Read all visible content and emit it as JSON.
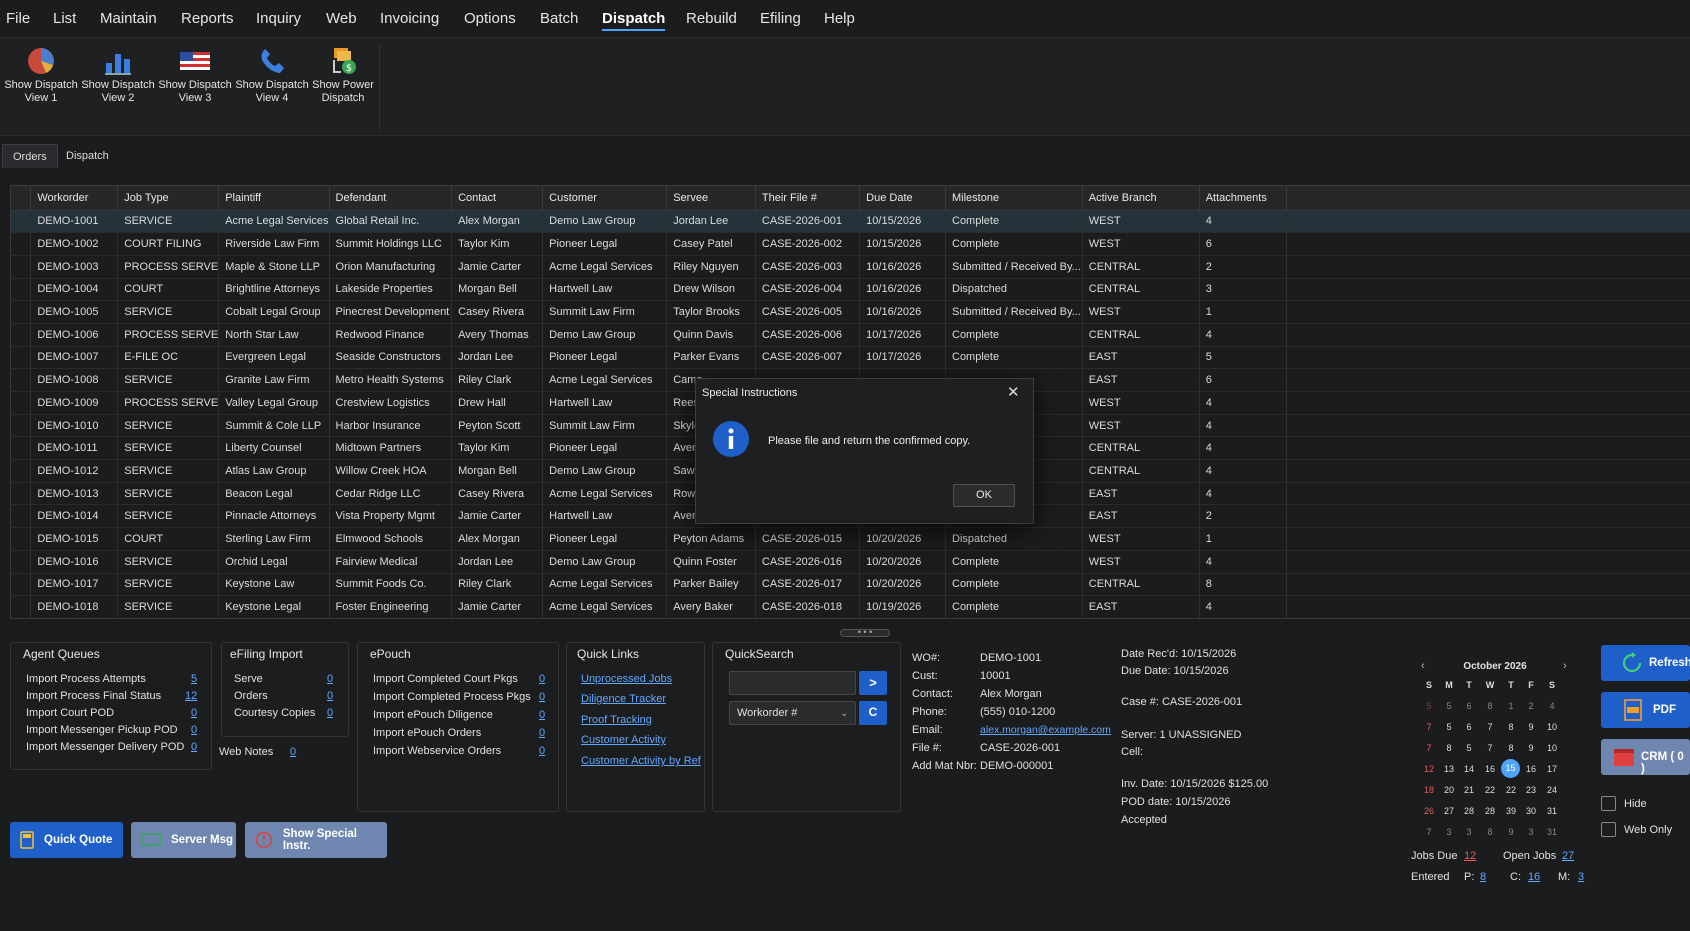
{
  "menu": [
    "File",
    "List",
    "Maintain",
    "Reports",
    "Inquiry",
    "Web",
    "Invoicing",
    "Options",
    "Batch",
    "Dispatch",
    "Rebuild",
    "Efiling",
    "Help"
  ],
  "ribbon": [
    {
      "line1": "Show Dispatch",
      "line2": "View 1",
      "icon": "pie-chart-icon"
    },
    {
      "line1": "Show Dispatch",
      "line2": "View 2",
      "icon": "bar-chart-icon"
    },
    {
      "line1": "Show Dispatch",
      "line2": "View 3",
      "icon": "flag-icon"
    },
    {
      "line1": "Show Dispatch",
      "line2": "View 4",
      "icon": "phone-icon"
    },
    {
      "line1": "Show Power",
      "line2": "Dispatch",
      "icon": "power-dispatch-icon"
    }
  ],
  "tabs": [
    "Orders",
    "Dispatch"
  ],
  "grid": {
    "columns": [
      "Workorder",
      "Job Type",
      "Plaintiff",
      "Defendant",
      "Contact",
      "Customer",
      "Servee",
      "Their File #",
      "Due Date",
      "Milestone",
      "Active Branch",
      "Attachments"
    ],
    "rows": [
      [
        "DEMO-1001",
        "SERVICE",
        "Acme Legal Services",
        "Global Retail Inc.",
        "Alex Morgan",
        "Demo Law Group",
        "Jordan Lee",
        "CASE-2026-001",
        "10/15/2026",
        "Complete",
        "WEST",
        "4"
      ],
      [
        "DEMO-1002",
        "COURT FILING",
        "Riverside Law Firm",
        "Summit Holdings LLC",
        "Taylor Kim",
        "Pioneer Legal",
        "Casey Patel",
        "CASE-2026-002",
        "10/15/2026",
        "Complete",
        "WEST",
        "6"
      ],
      [
        "DEMO-1003",
        "PROCESS SERVE",
        "Maple & Stone LLP",
        "Orion Manufacturing",
        "Jamie Carter",
        "Acme Legal Services",
        "Riley Nguyen",
        "CASE-2026-003",
        "10/16/2026",
        "Submitted / Received By...",
        "CENTRAL",
        "2"
      ],
      [
        "DEMO-1004",
        "COURT",
        "Brightline Attorneys",
        "Lakeside Properties",
        "Morgan Bell",
        "Hartwell Law",
        "Drew Wilson",
        "CASE-2026-004",
        "10/16/2026",
        "Dispatched",
        "CENTRAL",
        "3"
      ],
      [
        "DEMO-1005",
        "SERVICE",
        "Cobalt Legal Group",
        "Pinecrest Development",
        "Casey Rivera",
        "Summit Law Firm",
        "Taylor Brooks",
        "CASE-2026-005",
        "10/16/2026",
        "Submitted / Received By...",
        "WEST",
        "1"
      ],
      [
        "DEMO-1006",
        "PROCESS SERVE",
        "North Star Law",
        "Redwood Finance",
        "Avery Thomas",
        "Demo Law Group",
        "Quinn Davis",
        "CASE-2026-006",
        "10/17/2026",
        "Complete",
        "CENTRAL",
        "4"
      ],
      [
        "DEMO-1007",
        "E-FILE OC",
        "Evergreen Legal",
        "Seaside Constructors",
        "Jordan Lee",
        "Pioneer Legal",
        "Parker Evans",
        "CASE-2026-007",
        "10/17/2026",
        "Complete",
        "EAST",
        "5"
      ],
      [
        "DEMO-1008",
        "SERVICE",
        "Granite Law Firm",
        "Metro Health Systems",
        "Riley Clark",
        "Acme Legal Services",
        "Came",
        "",
        "",
        "",
        "EAST",
        "6"
      ],
      [
        "DEMO-1009",
        "PROCESS SERVE",
        "Valley Legal Group",
        "Crestview Logistics",
        "Drew Hall",
        "Hartwell Law",
        "Rees",
        "",
        "",
        "eceived By...",
        "WEST",
        "4"
      ],
      [
        "DEMO-1010",
        "SERVICE",
        "Summit & Cole LLP",
        "Harbor Insurance",
        "Peyton Scott",
        "Summit Law Firm",
        "Skyle",
        "",
        "",
        "",
        "WEST",
        "4"
      ],
      [
        "DEMO-1011",
        "SERVICE",
        "Liberty Counsel",
        "Midtown Partners",
        "Taylor Kim",
        "Pioneer Legal",
        "Avery",
        "",
        "",
        "",
        "CENTRAL",
        "4"
      ],
      [
        "DEMO-1012",
        "SERVICE",
        "Atlas Law Group",
        "Willow Creek HOA",
        "Morgan Bell",
        "Demo Law Group",
        "Sawy",
        "",
        "",
        "",
        "CENTRAL",
        "4"
      ],
      [
        "DEMO-1013",
        "SERVICE",
        "Beacon Legal",
        "Cedar Ridge LLC",
        "Casey Rivera",
        "Acme Legal Services",
        "Rowa",
        "",
        "",
        "",
        "EAST",
        "4"
      ],
      [
        "DEMO-1014",
        "SERVICE",
        "Pinnacle Attorneys",
        "Vista Property Mgmt",
        "Jamie Carter",
        "Hartwell Law",
        "Avery",
        "",
        "",
        "",
        "EAST",
        "2"
      ],
      [
        "DEMO-1015",
        "COURT",
        "Sterling Law Firm",
        "Elmwood Schools",
        "Alex Morgan",
        "Pioneer Legal",
        "Peyton Adams",
        "CASE-2026-015",
        "10/20/2026",
        "Dispatched",
        "WEST",
        "1"
      ],
      [
        "DEMO-1016",
        "SERVICE",
        "Orchid Legal",
        "Fairview Medical",
        "Jordan Lee",
        "Demo Law Group",
        "Quinn Foster",
        "CASE-2026-016",
        "10/20/2026",
        "Complete",
        "WEST",
        "4"
      ],
      [
        "DEMO-1017",
        "SERVICE",
        "Keystone Law",
        "Summit Foods Co.",
        "Riley Clark",
        "Acme Legal Services",
        "Parker Bailey",
        "CASE-2026-017",
        "10/20/2026",
        "Complete",
        "CENTRAL",
        "8"
      ],
      [
        "DEMO-1018",
        "SERVICE",
        "Keystone Legal",
        "Foster Engineering",
        "Jamie Carter",
        "Acme Legal Services",
        "Avery Baker",
        "CASE-2026-018",
        "10/19/2026",
        "Complete",
        "EAST",
        "4"
      ]
    ]
  },
  "agent_queues": {
    "title": "Agent Queues",
    "items": [
      {
        "label": "Import Process Attempts",
        "value": "5"
      },
      {
        "label": "Import Process Final Status",
        "value": "12"
      },
      {
        "label": "Import Court POD",
        "value": "0"
      },
      {
        "label": "Import Messenger Pickup POD",
        "value": "0"
      },
      {
        "label": "Import Messenger Delivery POD",
        "value": "0"
      }
    ]
  },
  "efiling": {
    "title": "eFiling Import",
    "items": [
      {
        "label": "Serve",
        "value": "0"
      },
      {
        "label": "Orders",
        "value": "0"
      },
      {
        "label": "Courtesy Copies",
        "value": "0"
      }
    ],
    "web_notes_label": "Web Notes",
    "web_notes_value": "0"
  },
  "epouch": {
    "title": "ePouch",
    "items": [
      {
        "label": "Import Completed Court Pkgs",
        "value": "0"
      },
      {
        "label": "Import Completed Process Pkgs",
        "value": "0"
      },
      {
        "label": "Import ePouch Diligence",
        "value": "0"
      },
      {
        "label": "Import ePouch Orders",
        "value": "0"
      },
      {
        "label": "Import Webservice Orders",
        "value": "0"
      }
    ]
  },
  "quick_links": {
    "title": "Quick Links",
    "items": [
      "Unprocessed Jobs",
      "Diligence Tracker",
      "Proof Tracking",
      "Customer Activity",
      "Customer Activity by Ref"
    ]
  },
  "quick_search": {
    "title": "QuickSearch",
    "input_value": "",
    "go_label": ">",
    "select_value": "Workorder #",
    "clear_label": "C"
  },
  "detail": {
    "wo_label": "WO#:",
    "wo": "DEMO-1001",
    "cust_label": "Cust:",
    "cust": "10001",
    "contact_label": "Contact:",
    "contact": "Alex Morgan",
    "phone_label": "Phone:",
    "phone": "(555) 010-1200",
    "email_label": "Email:",
    "email": "alex.morgan@example.com",
    "file_label": "File #:",
    "file": "CASE-2026-001",
    "mat_label": "Add Mat Nbr:",
    "mat": "DEMO-000001",
    "date_recd": "Date Rec'd: 10/15/2026",
    "due_date": "Due Date: 10/15/2026",
    "case": "Case #: CASE-2026-001",
    "server": "Server: 1 UNASSIGNED",
    "cell": "Cell:",
    "inv": "Inv. Date: 10/15/2026  $125.00",
    "pod": "POD date: 10/15/2026",
    "accepted": "Accepted"
  },
  "buttons": {
    "quick_quote": "Quick Quote",
    "server_msg": "Server Msg",
    "special_instr": "Show Special Instr."
  },
  "calendar": {
    "title": "October 2026",
    "days": [
      "S",
      "M",
      "T",
      "W",
      "T",
      "F",
      "S"
    ],
    "weeks": [
      [
        "5",
        "5",
        "6",
        "8",
        "1",
        "2",
        "4"
      ],
      [
        "7",
        "5",
        "6",
        "7",
        "8",
        "9",
        "10"
      ],
      [
        "7",
        "8",
        "5",
        "7",
        "8",
        "9",
        "10"
      ],
      [
        "12",
        "13",
        "14",
        "16",
        "15",
        "16",
        "17"
      ],
      [
        "18",
        "20",
        "21",
        "22",
        "22",
        "23",
        "24"
      ],
      [
        "26",
        "27",
        "28",
        "28",
        "39",
        "30",
        "31"
      ],
      [
        "7",
        "3",
        "3",
        "8",
        "9",
        "3",
        "31"
      ]
    ],
    "selected": "15",
    "accent": "#4da3ff",
    "weekend_color": "#e55a5a"
  },
  "jobs": {
    "due_label": "Jobs Due",
    "due": "12",
    "open_label": "Open Jobs",
    "open": "27",
    "entered_label": "Entered",
    "p_label": "P:",
    "p": "8",
    "c_label": "C:",
    "c": "16",
    "m_label": "M:",
    "m": "3"
  },
  "side": {
    "refresh": "Refresh",
    "pdf": "PDF",
    "crm": "CRM ( 0 )",
    "hide": "Hide",
    "web_only": "Web Only"
  },
  "dialog": {
    "title": "Special Instructions",
    "message": "Please file and return the confirmed copy.",
    "ok": "OK"
  }
}
